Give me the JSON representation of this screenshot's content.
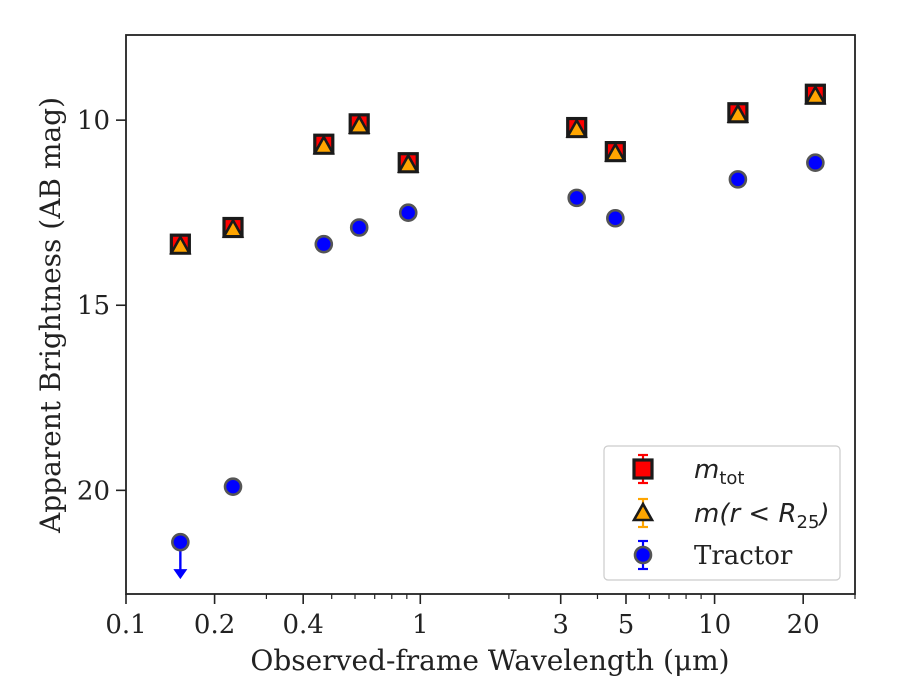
{
  "chart_data": {
    "type": "scatter",
    "xlabel": "Observed-frame Wavelength (μm)",
    "ylabel": "Apparent Brightness (AB mag)",
    "x_scale": "log",
    "xlim": [
      0.1,
      30
    ],
    "ylim": [
      22.8,
      7.7
    ],
    "y_inverted": true,
    "x_ticks": [
      {
        "value": 0.1,
        "label": "0.1"
      },
      {
        "value": 0.2,
        "label": "0.2"
      },
      {
        "value": 0.4,
        "label": "0.4"
      },
      {
        "value": 1,
        "label": "1"
      },
      {
        "value": 3,
        "label": "3"
      },
      {
        "value": 5,
        "label": "5"
      },
      {
        "value": 10,
        "label": "10"
      },
      {
        "value": 20,
        "label": "20"
      }
    ],
    "y_ticks": [
      {
        "value": 10,
        "label": "10"
      },
      {
        "value": 15,
        "label": "15"
      },
      {
        "value": 20,
        "label": "20"
      }
    ],
    "grid": false,
    "legend_position": "lower-right",
    "series": [
      {
        "name": "m_tot",
        "legend_label": {
          "base": "m",
          "sub": "tot",
          "suffix": ""
        },
        "marker": "square",
        "color": "#ff0000",
        "edge": "#1a1a1a",
        "points": [
          {
            "x": 0.153,
            "y": 13.35
          },
          {
            "x": 0.231,
            "y": 12.9
          },
          {
            "x": 0.47,
            "y": 10.65
          },
          {
            "x": 0.62,
            "y": 10.1
          },
          {
            "x": 0.91,
            "y": 11.15
          },
          {
            "x": 3.4,
            "y": 10.2
          },
          {
            "x": 4.6,
            "y": 10.85
          },
          {
            "x": 12.0,
            "y": 9.8
          },
          {
            "x": 22.0,
            "y": 9.3
          }
        ]
      },
      {
        "name": "m(r < R25)",
        "legend_label": {
          "base": "m(r < R",
          "sub": "25",
          "suffix": ")"
        },
        "marker": "triangle",
        "color": "#ffa500",
        "edge": "#1a1a1a",
        "points": [
          {
            "x": 0.153,
            "y": 13.4
          },
          {
            "x": 0.231,
            "y": 12.95
          },
          {
            "x": 0.47,
            "y": 10.7
          },
          {
            "x": 0.62,
            "y": 10.15
          },
          {
            "x": 0.91,
            "y": 11.2
          },
          {
            "x": 3.4,
            "y": 10.25
          },
          {
            "x": 4.6,
            "y": 10.9
          },
          {
            "x": 12.0,
            "y": 9.85
          },
          {
            "x": 22.0,
            "y": 9.35
          }
        ]
      },
      {
        "name": "Tractor",
        "legend_label": {
          "base": "Tractor",
          "sub": "",
          "suffix": ""
        },
        "marker": "circle",
        "color": "#0000ff",
        "edge": "#555555",
        "points": [
          {
            "x": 0.153,
            "y": 21.4,
            "upper_limit": true
          },
          {
            "x": 0.231,
            "y": 19.9
          },
          {
            "x": 0.47,
            "y": 13.35
          },
          {
            "x": 0.62,
            "y": 12.9
          },
          {
            "x": 0.91,
            "y": 12.5
          },
          {
            "x": 3.4,
            "y": 12.1
          },
          {
            "x": 4.6,
            "y": 12.65
          },
          {
            "x": 12.0,
            "y": 11.6
          },
          {
            "x": 22.0,
            "y": 11.15
          }
        ]
      }
    ]
  }
}
